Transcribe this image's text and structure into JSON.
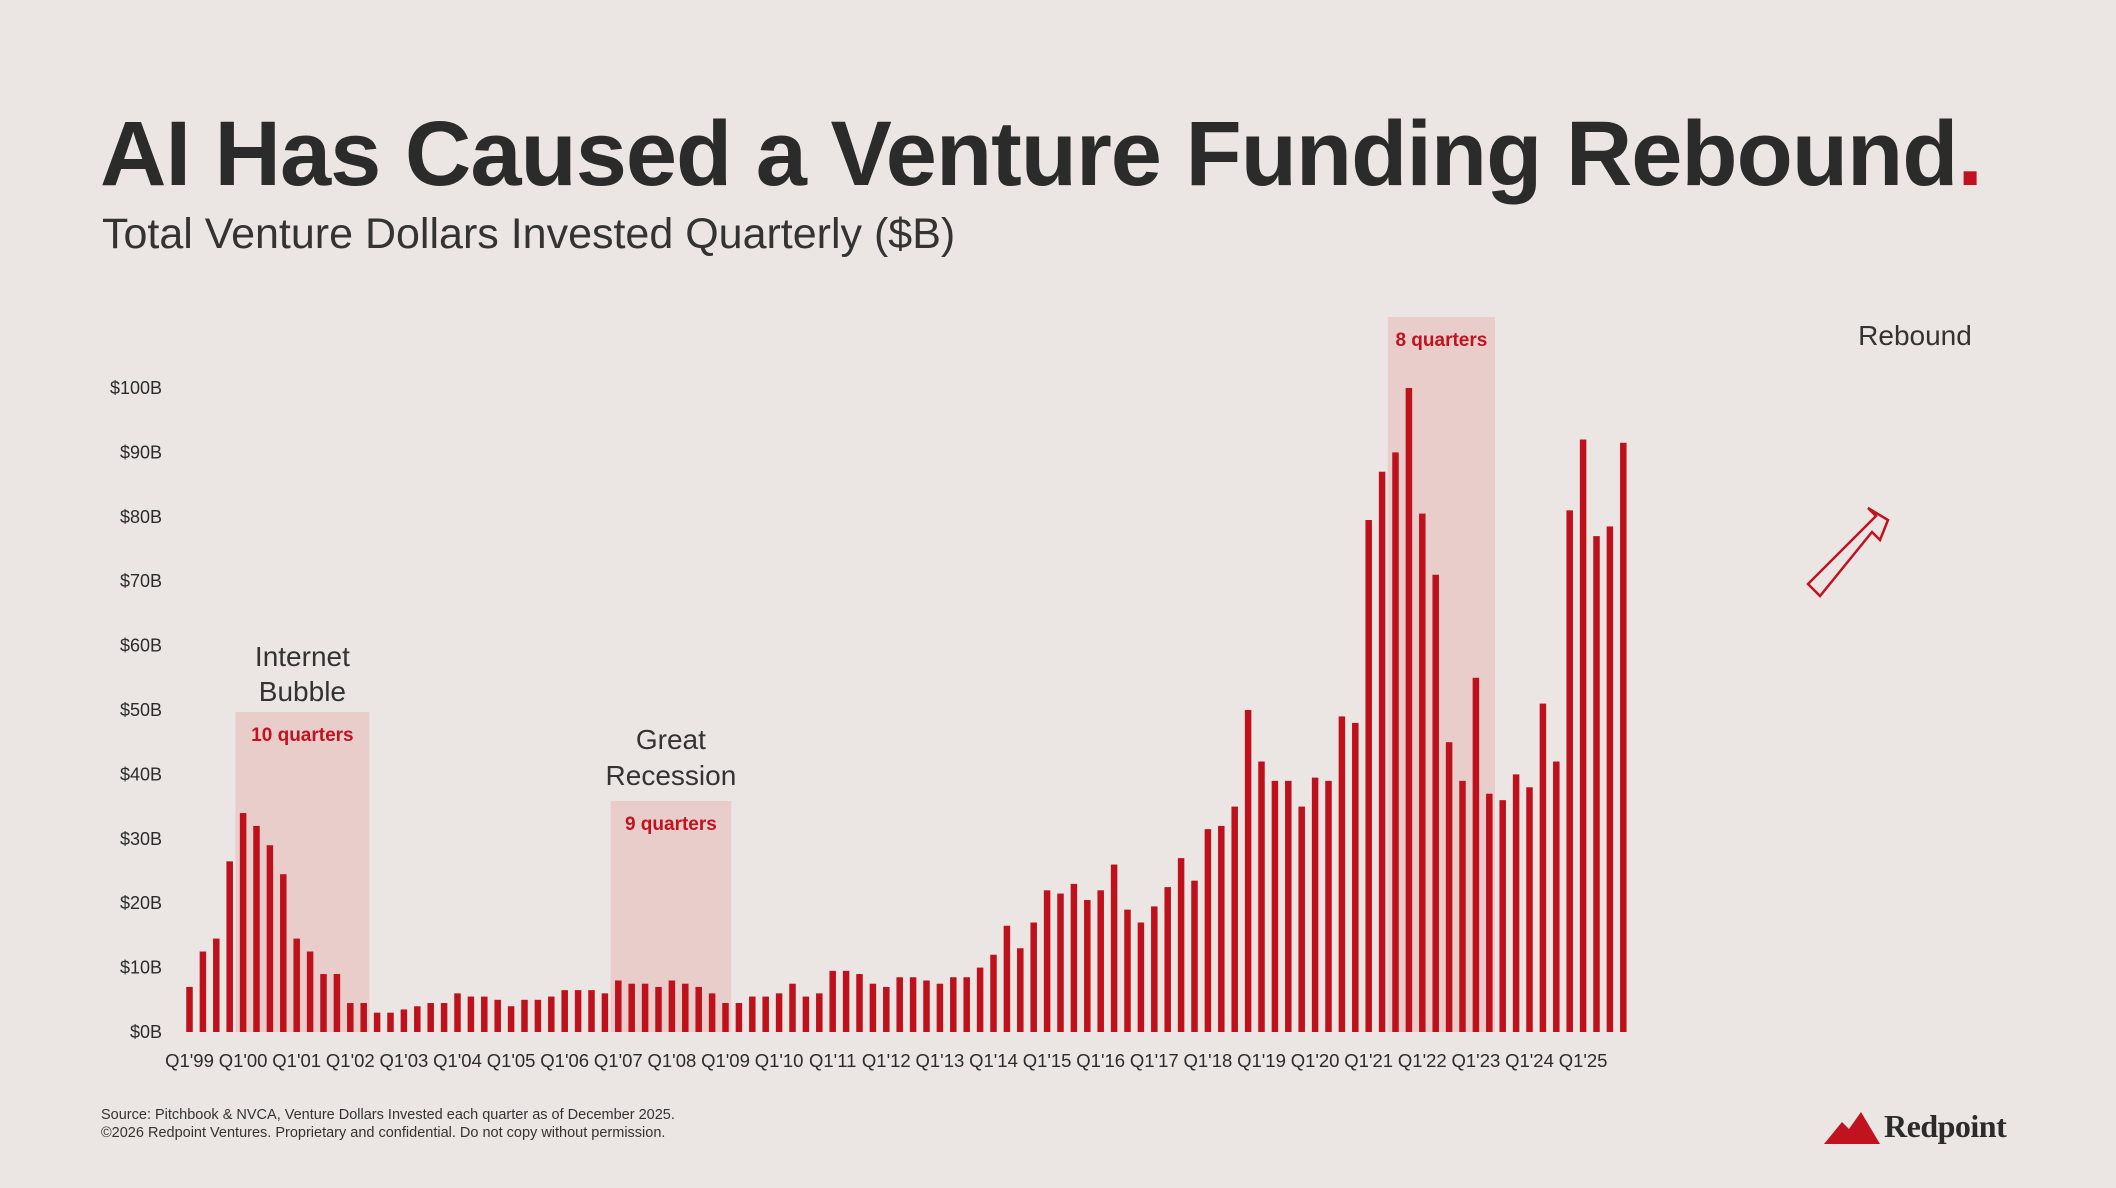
{
  "title_main": "AI Has Caused a Venture Funding Rebound",
  "title_dot": ".",
  "subtitle": "Total Venture Dollars Invested Quarterly ($B)",
  "footnote_source": "Source: Pitchbook & NVCA, Venture Dollars Invested each quarter as of December 2025.",
  "footnote_copyright": "©2026 Redpoint Ventures. Proprietary and confidential. Do not copy without permission.",
  "logo": {
    "text": "Redpoint",
    "icon": "redpoint-mountain-icon"
  },
  "colors": {
    "bar": "#bf111c",
    "shade": "#e8cdca",
    "accent": "#c1121f",
    "text": "#2b2b2b"
  },
  "chart_data": {
    "type": "bar",
    "title": "AI Has Caused a Venture Funding Rebound.",
    "subtitle": "Total Venture Dollars Invested Quarterly ($B)",
    "xlabel": "",
    "ylabel": "",
    "ylim": [
      0,
      100
    ],
    "grid": false,
    "yticks": [
      "$0B",
      "$10B",
      "$20B",
      "$30B",
      "$40B",
      "$50B",
      "$60B",
      "$70B",
      "$80B",
      "$90B",
      "$100B"
    ],
    "xtick_labels": [
      {
        "index": 0,
        "label": "Q1'99"
      },
      {
        "index": 4,
        "label": "Q1'00"
      },
      {
        "index": 8,
        "label": "Q1'01"
      },
      {
        "index": 12,
        "label": "Q1'02"
      },
      {
        "index": 16,
        "label": "Q1'03"
      },
      {
        "index": 20,
        "label": "Q1'04"
      },
      {
        "index": 24,
        "label": "Q1'05"
      },
      {
        "index": 28,
        "label": "Q1'06"
      },
      {
        "index": 32,
        "label": "Q1'07"
      },
      {
        "index": 36,
        "label": "Q1'08"
      },
      {
        "index": 40,
        "label": "Q1'09"
      },
      {
        "index": 44,
        "label": "Q1'10"
      },
      {
        "index": 48,
        "label": "Q1'11"
      },
      {
        "index": 52,
        "label": "Q1'12"
      },
      {
        "index": 56,
        "label": "Q1'13"
      },
      {
        "index": 60,
        "label": "Q1'14"
      },
      {
        "index": 64,
        "label": "Q1'15"
      },
      {
        "index": 68,
        "label": "Q1'16"
      },
      {
        "index": 72,
        "label": "Q1'17"
      },
      {
        "index": 76,
        "label": "Q1'18"
      },
      {
        "index": 80,
        "label": "Q1'19"
      },
      {
        "index": 84,
        "label": "Q1'20"
      },
      {
        "index": 88,
        "label": "Q1'21"
      },
      {
        "index": 92,
        "label": "Q1'22"
      },
      {
        "index": 96,
        "label": "Q1'23"
      },
      {
        "index": 100,
        "label": "Q1'24"
      },
      {
        "index": 104,
        "label": "Q1'25"
      }
    ],
    "series": [
      {
        "name": "Total Venture Dollars Invested ($B)",
        "values": [
          7,
          12.5,
          14.5,
          26.5,
          34,
          32,
          29,
          24.5,
          14.5,
          12.5,
          9,
          9,
          4.5,
          4.5,
          3,
          3,
          3.5,
          4,
          4.5,
          4.5,
          6,
          5.5,
          5.5,
          5,
          4,
          5,
          5,
          5.5,
          6.5,
          6.5,
          6.5,
          6,
          8,
          7.5,
          7.5,
          7,
          8,
          7.5,
          7,
          6,
          4.5,
          4.5,
          5.5,
          5.5,
          6,
          7.5,
          5.5,
          6,
          9.5,
          9.5,
          9,
          7.5,
          7,
          8.5,
          8.5,
          8,
          7.5,
          8.5,
          8.5,
          10,
          12,
          16.5,
          13,
          17,
          22,
          21.5,
          23,
          20.5,
          22,
          26,
          19,
          17,
          19.5,
          22.5,
          27,
          23.5,
          31.5,
          32,
          35,
          50,
          42,
          39,
          39,
          35,
          39.5,
          39,
          49,
          48,
          79.5,
          87,
          90,
          100,
          80.5,
          71,
          45,
          39,
          55,
          37,
          36,
          40,
          38,
          51,
          42,
          81,
          92,
          77,
          78.5,
          91.5
        ]
      }
    ],
    "annotations": [
      {
        "label": "Internet Bubble",
        "duration": "10 quarters",
        "start_index": 4,
        "end_index": 14
      },
      {
        "label": "Great Recession",
        "duration": "9 quarters",
        "start_index": 32,
        "end_index": 41
      },
      {
        "label": "Rebound",
        "duration": "8 quarters",
        "start_index": 90,
        "end_index": 98
      }
    ]
  }
}
